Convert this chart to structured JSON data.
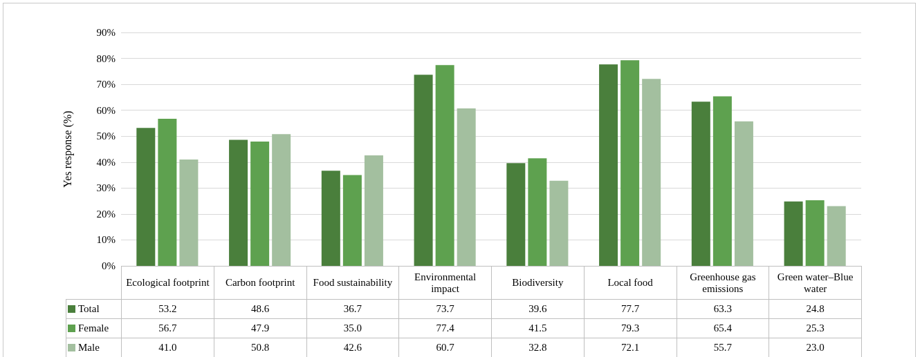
{
  "chart_data": {
    "type": "bar",
    "ylabel": "Yes response (%)",
    "categories": [
      "Ecological footprint",
      "Carbon footprint",
      "Food sustainability",
      "Environmental impact",
      "Biodiversity",
      "Local food",
      "Greenhouse gas emissions",
      "Green water–Blue water"
    ],
    "series": [
      {
        "name": "Total",
        "color": "#4a7f3c",
        "values": [
          53.2,
          48.6,
          36.7,
          73.7,
          39.6,
          77.7,
          63.3,
          24.8
        ],
        "value_labels": [
          "53.2",
          "48.6",
          "36.7",
          "73.7",
          "39.6",
          "77.7",
          "63.3",
          "24.8"
        ]
      },
      {
        "name": "Female",
        "color": "#5ea14f",
        "values": [
          56.7,
          47.9,
          35.0,
          77.4,
          41.5,
          79.3,
          65.4,
          25.3
        ],
        "value_labels": [
          "56.7",
          "47.9",
          "35.0",
          "77.4",
          "41.5",
          "79.3",
          "65.4",
          "25.3"
        ]
      },
      {
        "name": "Male",
        "color": "#a3bf9f",
        "values": [
          41.0,
          50.8,
          42.6,
          60.7,
          32.8,
          72.1,
          55.7,
          23.0
        ],
        "value_labels": [
          "41.0",
          "50.8",
          "42.6",
          "60.7",
          "32.8",
          "72.1",
          "55.7",
          "23.0"
        ]
      }
    ],
    "ylim": [
      0,
      90
    ],
    "yticks": [
      {
        "value": 0,
        "label": "0%"
      },
      {
        "value": 10,
        "label": "10%"
      },
      {
        "value": 20,
        "label": "20%"
      },
      {
        "value": 30,
        "label": "30%"
      },
      {
        "value": 40,
        "label": "40%"
      },
      {
        "value": 50,
        "label": "50%"
      },
      {
        "value": 60,
        "label": "60%"
      },
      {
        "value": 70,
        "label": "70%"
      },
      {
        "value": 80,
        "label": "80%"
      },
      {
        "value": 90,
        "label": "90%"
      }
    ],
    "grid": "y",
    "legend": "bottom left"
  }
}
